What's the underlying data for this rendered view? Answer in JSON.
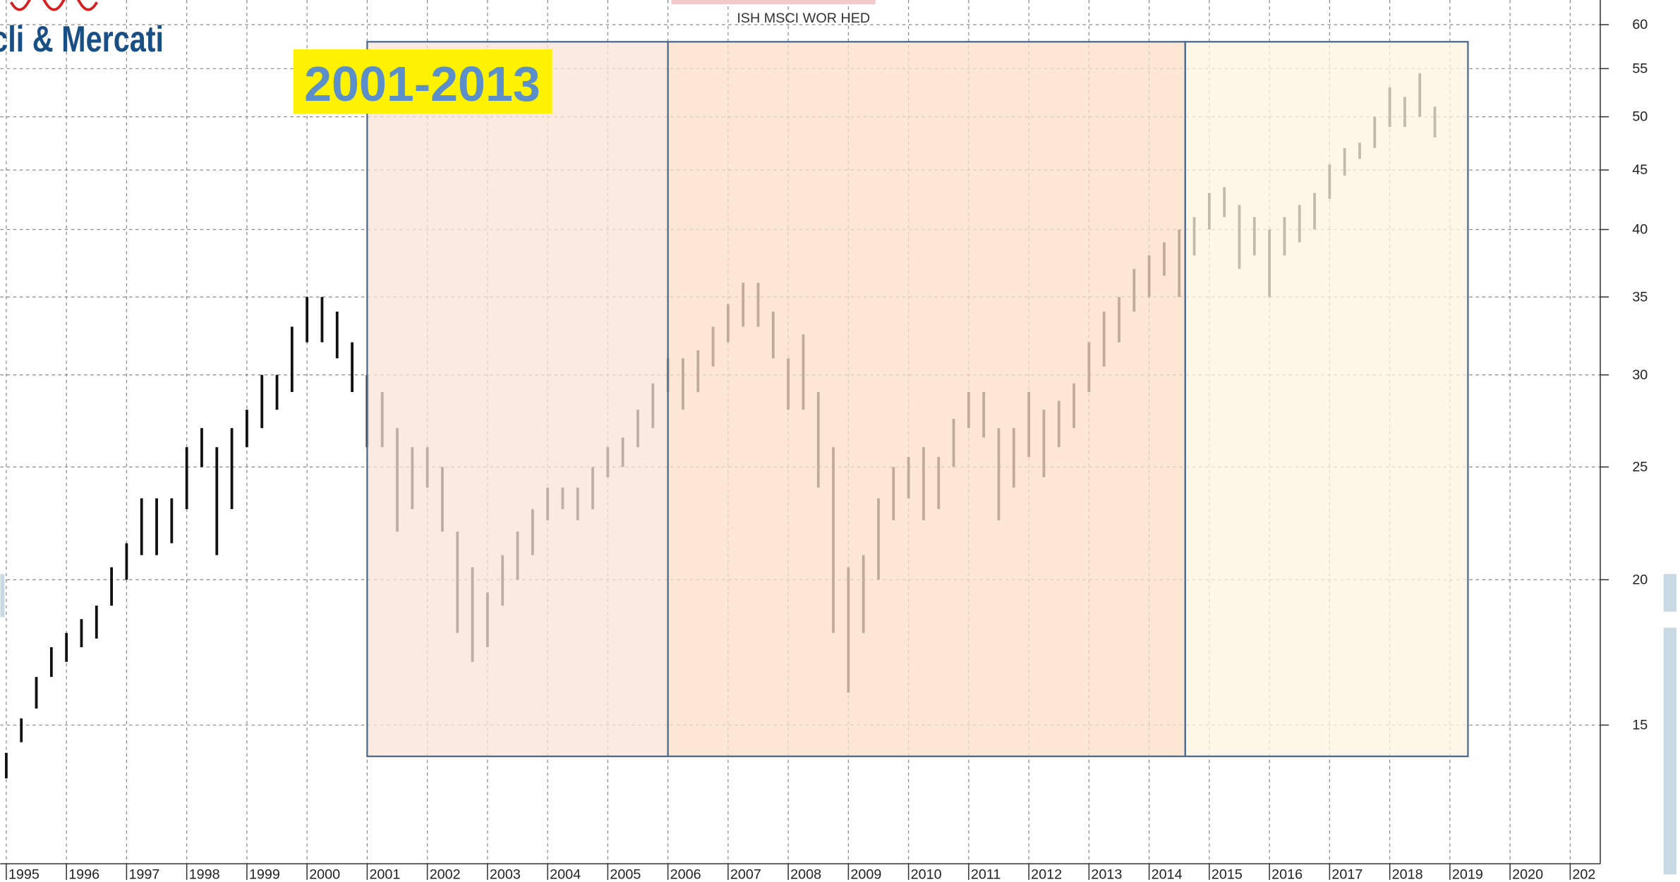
{
  "chart_data": {
    "type": "ohlc",
    "title": "ISH MSCI WOR HED",
    "logo": "cli & Mercati",
    "annotation": "2001-2013",
    "color": "#111111",
    "log_scale": true,
    "grid": true,
    "xlim": [
      1994.9,
      2021.5
    ],
    "xticks": [
      1995,
      1996,
      1997,
      1998,
      1999,
      2000,
      2001,
      2002,
      2003,
      2004,
      2005,
      2006,
      2007,
      2008,
      2009,
      2010,
      2011,
      2012,
      2013,
      2014,
      2015,
      2016,
      2017,
      2018,
      2019,
      2020,
      {
        "value": 2021,
        "label": "202"
      }
    ],
    "ylim": [
      11.4,
      63
    ],
    "yticks": [
      15,
      20,
      25,
      30,
      35,
      40,
      45,
      50,
      55,
      60
    ],
    "shaded_regions": [
      {
        "xlim": [
          2001,
          2006
        ],
        "ylim": [
          14.1,
          58
        ],
        "color": "#f9e3d6"
      },
      {
        "xlim": [
          2006,
          2014.6
        ],
        "ylim": [
          14.1,
          58
        ],
        "color": "#f9dfc5"
      },
      {
        "xlim": [
          2014.6,
          2019.3
        ],
        "ylim": [
          14.1,
          58
        ],
        "color": "#fdf4e0"
      }
    ],
    "x": [
      1995,
      1995.25,
      1995.5,
      1995.75,
      1996,
      1996.25,
      1996.5,
      1996.75,
      1997,
      1997.25,
      1997.5,
      1997.75,
      1998,
      1998.25,
      1998.5,
      1998.75,
      1999,
      1999.25,
      1999.5,
      1999.75,
      2000,
      2000.25,
      2000.5,
      2000.75,
      2001,
      2001.25,
      2001.5,
      2001.75,
      2002,
      2002.25,
      2002.5,
      2002.75,
      2003,
      2003.25,
      2003.5,
      2003.75,
      2004,
      2004.25,
      2004.5,
      2004.75,
      2005,
      2005.25,
      2005.5,
      2005.75,
      2006,
      2006.25,
      2006.5,
      2006.75,
      2007,
      2007.25,
      2007.5,
      2007.75,
      2008,
      2008.25,
      2008.5,
      2008.75,
      2009,
      2009.25,
      2009.5,
      2009.75,
      2010,
      2010.25,
      2010.5,
      2010.75,
      2011,
      2011.25,
      2011.5,
      2011.75,
      2012,
      2012.25,
      2012.5,
      2012.75,
      2013,
      2013.25,
      2013.5,
      2013.75,
      2014,
      2014.25,
      2014.5,
      2014.75,
      2015,
      2015.25,
      2015.5,
      2015.75,
      2016,
      2016.25,
      2016.5,
      2016.75,
      2017,
      2017.25,
      2017.5,
      2017.75,
      2018,
      2018.25,
      2018.5,
      2018.75
    ],
    "highs": [
      14.2,
      15.2,
      16.5,
      17.5,
      18,
      18.5,
      19,
      20.5,
      21.5,
      23.5,
      23.5,
      23.5,
      26,
      27,
      26,
      27,
      28,
      30,
      30,
      33,
      35,
      35,
      34,
      32,
      30,
      29,
      27,
      26,
      26,
      25,
      22,
      20.5,
      19.5,
      21,
      22,
      23,
      24,
      24,
      24,
      25,
      26,
      26.5,
      28,
      29.5,
      31,
      31,
      31.5,
      33,
      34.5,
      36,
      36,
      34,
      31,
      32.5,
      29,
      26,
      20.5,
      21,
      23.5,
      25,
      25.5,
      26,
      25.5,
      27.5,
      29,
      29,
      27,
      27,
      29,
      28,
      28.5,
      29.5,
      32,
      34,
      35,
      37,
      38,
      39,
      40,
      41,
      43,
      43.5,
      42,
      41,
      40,
      41,
      42,
      43,
      45.5,
      47,
      47.5,
      50,
      53,
      52,
      54.5,
      51
    ],
    "lows": [
      13.5,
      14.5,
      15.5,
      16.5,
      17,
      17.5,
      17.8,
      19,
      20,
      21,
      21,
      21.5,
      23,
      25,
      21,
      23,
      26,
      27,
      28,
      29,
      32,
      32,
      31,
      29,
      26,
      26,
      22,
      23,
      24,
      22,
      18,
      17,
      17.5,
      19,
      20,
      21,
      22.5,
      23,
      22.5,
      23,
      24.5,
      25,
      26,
      27,
      29,
      28,
      29,
      30.5,
      32,
      33,
      33,
      31,
      28,
      28,
      24,
      18,
      16,
      18,
      20,
      22.5,
      23.5,
      22.5,
      23,
      25,
      27,
      26.5,
      22.5,
      24,
      25.5,
      24.5,
      26,
      27,
      29,
      30.5,
      32,
      34,
      35,
      36.5,
      35,
      38,
      40,
      41,
      37,
      38,
      35,
      38,
      39,
      40,
      42.5,
      44.5,
      46,
      47,
      49,
      49,
      50,
      48
    ]
  }
}
